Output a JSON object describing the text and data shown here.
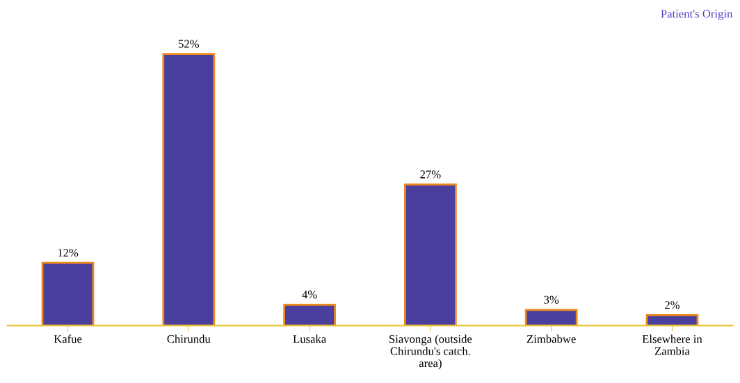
{
  "chart_data": {
    "type": "bar",
    "title": "Patient's Origin",
    "categories": [
      "Kafue",
      "Chirundu",
      "Lusaka",
      "Siavonga (outside Chirundu's catch. area)",
      "Zimbabwe",
      "Elsewhere in Zambia"
    ],
    "values": [
      12,
      52,
      4,
      27,
      3,
      2
    ],
    "value_labels": [
      "12%",
      "52%",
      "4%",
      "27%",
      "3%",
      "2%"
    ],
    "color": "#4b3f9e",
    "grid": false,
    "legend": false
  }
}
